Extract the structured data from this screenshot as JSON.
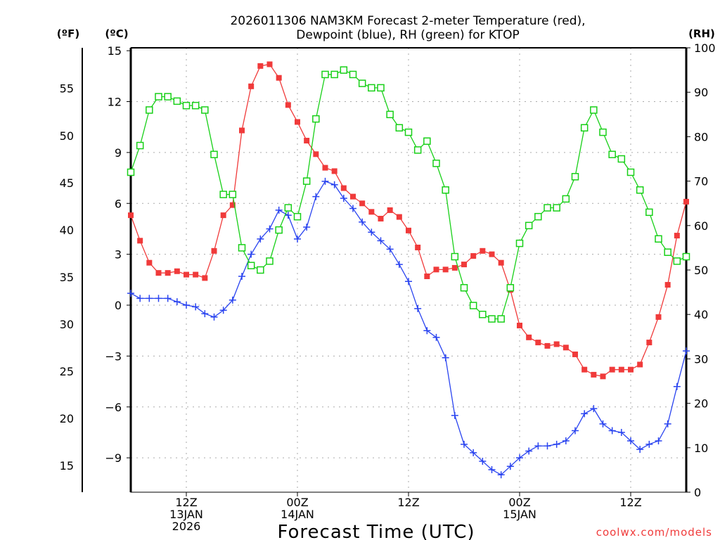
{
  "chart_data": {
    "type": "line",
    "title_lines": [
      "2026011306 NAM3KM Forecast 2-meter Temperature (red),",
      "Dewpoint (blue), RH (green) for KTOP"
    ],
    "xlabel": "Forecast Time (UTC)",
    "x_hours_range": [
      0,
      60
    ],
    "x_ticks": [
      {
        "hour": 6,
        "lines": [
          "12Z",
          "13JAN",
          "2026"
        ]
      },
      {
        "hour": 18,
        "lines": [
          "00Z",
          "14JAN"
        ]
      },
      {
        "hour": 30,
        "lines": [
          "12Z"
        ]
      },
      {
        "hour": 42,
        "lines": [
          "00Z",
          "15JAN"
        ]
      },
      {
        "hour": 54,
        "lines": [
          "12Z"
        ]
      }
    ],
    "axes": {
      "fahrenheit": {
        "label": "(ºF)",
        "ticks": [
          "15",
          "20",
          "25",
          "30",
          "35",
          "40",
          "45",
          "50",
          "55"
        ]
      },
      "celsius": {
        "label": "(ºC)",
        "ylim": [
          -11,
          15.2
        ],
        "ticks": [
          "15",
          "12",
          "9",
          "6",
          "3",
          "0",
          "−3",
          "−6",
          "−9"
        ]
      },
      "rh": {
        "label": "(RH)",
        "ylim": [
          0,
          100
        ],
        "ticks": [
          "0",
          "10",
          "20",
          "30",
          "40",
          "50",
          "60",
          "70",
          "80",
          "90",
          "100"
        ]
      }
    },
    "grid": true,
    "series": [
      {
        "name": "2-meter Temperature (ºC)",
        "color": "#f03a3a",
        "marker": "filled-square",
        "axis": "celsius",
        "values": [
          5.3,
          3.8,
          2.5,
          1.9,
          1.9,
          2.0,
          1.8,
          1.8,
          1.6,
          3.2,
          5.3,
          5.9,
          10.3,
          12.9,
          14.1,
          14.2,
          13.4,
          11.8,
          10.8,
          9.7,
          8.9,
          8.1,
          7.9,
          6.9,
          6.4,
          6.0,
          5.5,
          5.1,
          5.6,
          5.2,
          4.4,
          3.4,
          1.7,
          2.1,
          2.1,
          2.2,
          2.4,
          2.9,
          3.2,
          3.0,
          2.5,
          0.9,
          -1.2,
          -1.9,
          -2.2,
          -2.4,
          -2.3,
          -2.5,
          -2.9,
          -3.8,
          -4.1,
          -4.2,
          -3.8,
          -3.8,
          -3.8,
          -3.5,
          -2.2,
          -0.7,
          1.2,
          4.1,
          6.1
        ]
      },
      {
        "name": "Dewpoint (ºC)",
        "color": "#2a44f0",
        "marker": "plus",
        "axis": "celsius",
        "values": [
          0.7,
          0.4,
          0.4,
          0.4,
          0.4,
          0.2,
          0.0,
          -0.1,
          -0.5,
          -0.7,
          -0.3,
          0.3,
          1.7,
          3.0,
          3.9,
          4.5,
          5.6,
          5.3,
          3.9,
          4.6,
          6.4,
          7.3,
          7.1,
          6.3,
          5.7,
          4.9,
          4.3,
          3.8,
          3.3,
          2.4,
          1.4,
          -0.2,
          -1.5,
          -1.9,
          -3.1,
          -6.5,
          -8.2,
          -8.7,
          -9.2,
          -9.7,
          -10.0,
          -9.5,
          -9.0,
          -8.6,
          -8.3,
          -8.3,
          -8.2,
          -8.0,
          -7.4,
          -6.4,
          -6.1,
          -7.0,
          -7.4,
          -7.5,
          -8.0,
          -8.5,
          -8.2,
          -8.0,
          -7.0,
          -4.8,
          -2.7
        ]
      },
      {
        "name": "RH (%)",
        "color": "#18d018",
        "marker": "open-square",
        "axis": "rh",
        "values": [
          72,
          78,
          86,
          89,
          89,
          88,
          87,
          87,
          86,
          76,
          67,
          67,
          55,
          51,
          50,
          52,
          59,
          64,
          62,
          70,
          84,
          94,
          94,
          95,
          94,
          92,
          91,
          91,
          85,
          82,
          81,
          77,
          79,
          74,
          68,
          53,
          46,
          42,
          40,
          39,
          39,
          46,
          56,
          60,
          62,
          64,
          64,
          66,
          71,
          82,
          86,
          81,
          76,
          75,
          72,
          68,
          63,
          57,
          54,
          52,
          53
        ]
      }
    ],
    "credit": "coolwx.com/models"
  }
}
